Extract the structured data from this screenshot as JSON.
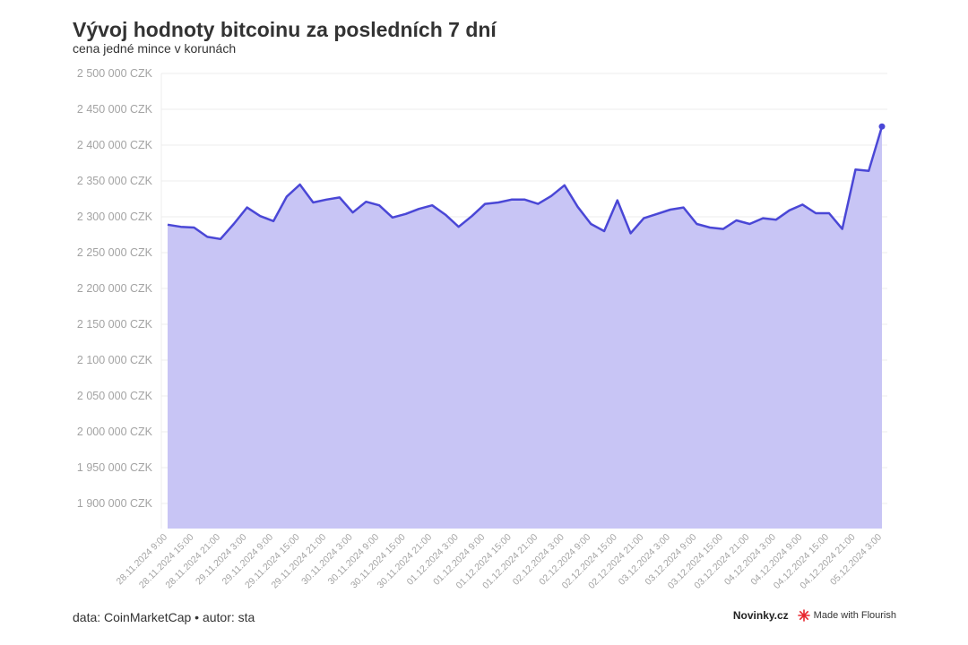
{
  "title": "Vývoj hodnoty bitcoinu za posledních 7 dní",
  "subtitle": "cena jedné mince v korunách",
  "footer": {
    "source": "data: CoinMarketCap • autor: sta",
    "publisher": "Novinky.cz",
    "made_with": "Made with Flourish"
  },
  "colors": {
    "line": "#4a47d6",
    "area": "#c8c5f5",
    "grid": "#ececec",
    "flourish_logo": "#e8262e"
  },
  "chart_data": {
    "type": "area",
    "title": "Vývoj hodnoty bitcoinu za posledních 7 dní",
    "subtitle": "cena jedné mince v korunách",
    "ylim": [
      1865000,
      2500000
    ],
    "yticks": [
      1900000,
      1950000,
      2000000,
      2050000,
      2100000,
      2150000,
      2200000,
      2250000,
      2300000,
      2350000,
      2400000,
      2450000,
      2500000
    ],
    "ytick_labels": [
      "1 900 000 CZK",
      "1 950 000 CZK",
      "2 000 000 CZK",
      "2 050 000 CZK",
      "2 100 000 CZK",
      "2 150 000 CZK",
      "2 200 000 CZK",
      "2 250 000 CZK",
      "2 300 000 CZK",
      "2 350 000 CZK",
      "2 400 000 CZK",
      "2 450 000 CZK",
      "2 500 000 CZK"
    ],
    "xtick_labels": [
      "28.11.2024 9:00",
      "28.11.2024 15:00",
      "28.11.2024 21:00",
      "29.11.2024 3:00",
      "29.11.2024 9:00",
      "29.11.2024 15:00",
      "29.11.2024 21:00",
      "30.11.2024 3:00",
      "30.11.2024 9:00",
      "30.11.2024 15:00",
      "30.11.2024 21:00",
      "01.12.2024 3:00",
      "01.12.2024 9:00",
      "01.12.2024 15:00",
      "01.12.2024 21:00",
      "02.12.2024 3:00",
      "02.12.2024 9:00",
      "02.12.2024 15:00",
      "02.12.2024 21:00",
      "03.12.2024 3:00",
      "03.12.2024 9:00",
      "03.12.2024 15:00",
      "03.12.2024 21:00",
      "04.12.2024 3:00",
      "04.12.2024 9:00",
      "04.12.2024 15:00",
      "04.12.2024 21:00",
      "05.12.2024 3:00"
    ],
    "grid": true,
    "series": [
      {
        "values": [
          2289000,
          2286000,
          2285000,
          2272000,
          2269000,
          2290000,
          2313000,
          2301000,
          2294000,
          2328000,
          2345000,
          2320000,
          2324000,
          2327000,
          2306000,
          2321000,
          2316000,
          2299000,
          2304000,
          2311000,
          2316000,
          2303000,
          2286000,
          2301000,
          2318000,
          2320000,
          2324000,
          2324000,
          2318000,
          2329000,
          2344000,
          2314000,
          2290000,
          2280000,
          2323000,
          2277000,
          2298000,
          2304000,
          2310000,
          2313000,
          2290000,
          2285000,
          2283000,
          2295000,
          2290000,
          2298000,
          2296000,
          2309000,
          2317000,
          2305000,
          2305000,
          2283000,
          2366000,
          2364000,
          2426000
        ]
      }
    ]
  }
}
